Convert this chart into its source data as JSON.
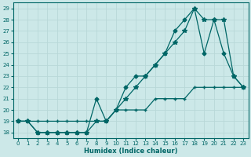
{
  "xlabel": "Humidex (Indice chaleur)",
  "bg_color": "#cce8e8",
  "grid_color": "#b8d8d8",
  "line_color": "#006666",
  "xlim": [
    -0.5,
    23.5
  ],
  "ylim": [
    17.5,
    29.5
  ],
  "xticks": [
    0,
    1,
    2,
    3,
    4,
    5,
    6,
    7,
    8,
    9,
    10,
    11,
    12,
    13,
    14,
    15,
    16,
    17,
    18,
    19,
    20,
    21,
    22,
    23
  ],
  "yticks": [
    18,
    19,
    20,
    21,
    22,
    23,
    24,
    25,
    26,
    27,
    28,
    29
  ],
  "line_straight_x": [
    0,
    1,
    2,
    3,
    4,
    5,
    6,
    7,
    8,
    9,
    10,
    11,
    12,
    13,
    14,
    15,
    16,
    17,
    18,
    19,
    20,
    21,
    22,
    23
  ],
  "line_straight_y": [
    19,
    19,
    19,
    19,
    19,
    19,
    19,
    19,
    19,
    19,
    20,
    20,
    20,
    20,
    21,
    21,
    21,
    21,
    22,
    22,
    22,
    22,
    22,
    22
  ],
  "line_mid_x": [
    0,
    1,
    2,
    3,
    4,
    5,
    6,
    7,
    8,
    9,
    10,
    11,
    12,
    13,
    14,
    15,
    16,
    17,
    18,
    19,
    20,
    21,
    22,
    23
  ],
  "line_mid_y": [
    19,
    19,
    18,
    18,
    18,
    18,
    18,
    18,
    19,
    19,
    20,
    21,
    22,
    23,
    24,
    25,
    26,
    27,
    29,
    28,
    28,
    28,
    23,
    22
  ],
  "line_top_x": [
    0,
    1,
    2,
    3,
    4,
    5,
    6,
    7,
    8,
    9,
    10,
    11,
    12,
    13,
    14,
    15,
    16,
    17,
    18,
    19,
    20,
    21,
    22,
    23
  ],
  "line_top_y": [
    19,
    19,
    18,
    18,
    18,
    18,
    18,
    18,
    21,
    19,
    20,
    22,
    23,
    23,
    24,
    25,
    27,
    28,
    29,
    25,
    28,
    25,
    23,
    22
  ]
}
